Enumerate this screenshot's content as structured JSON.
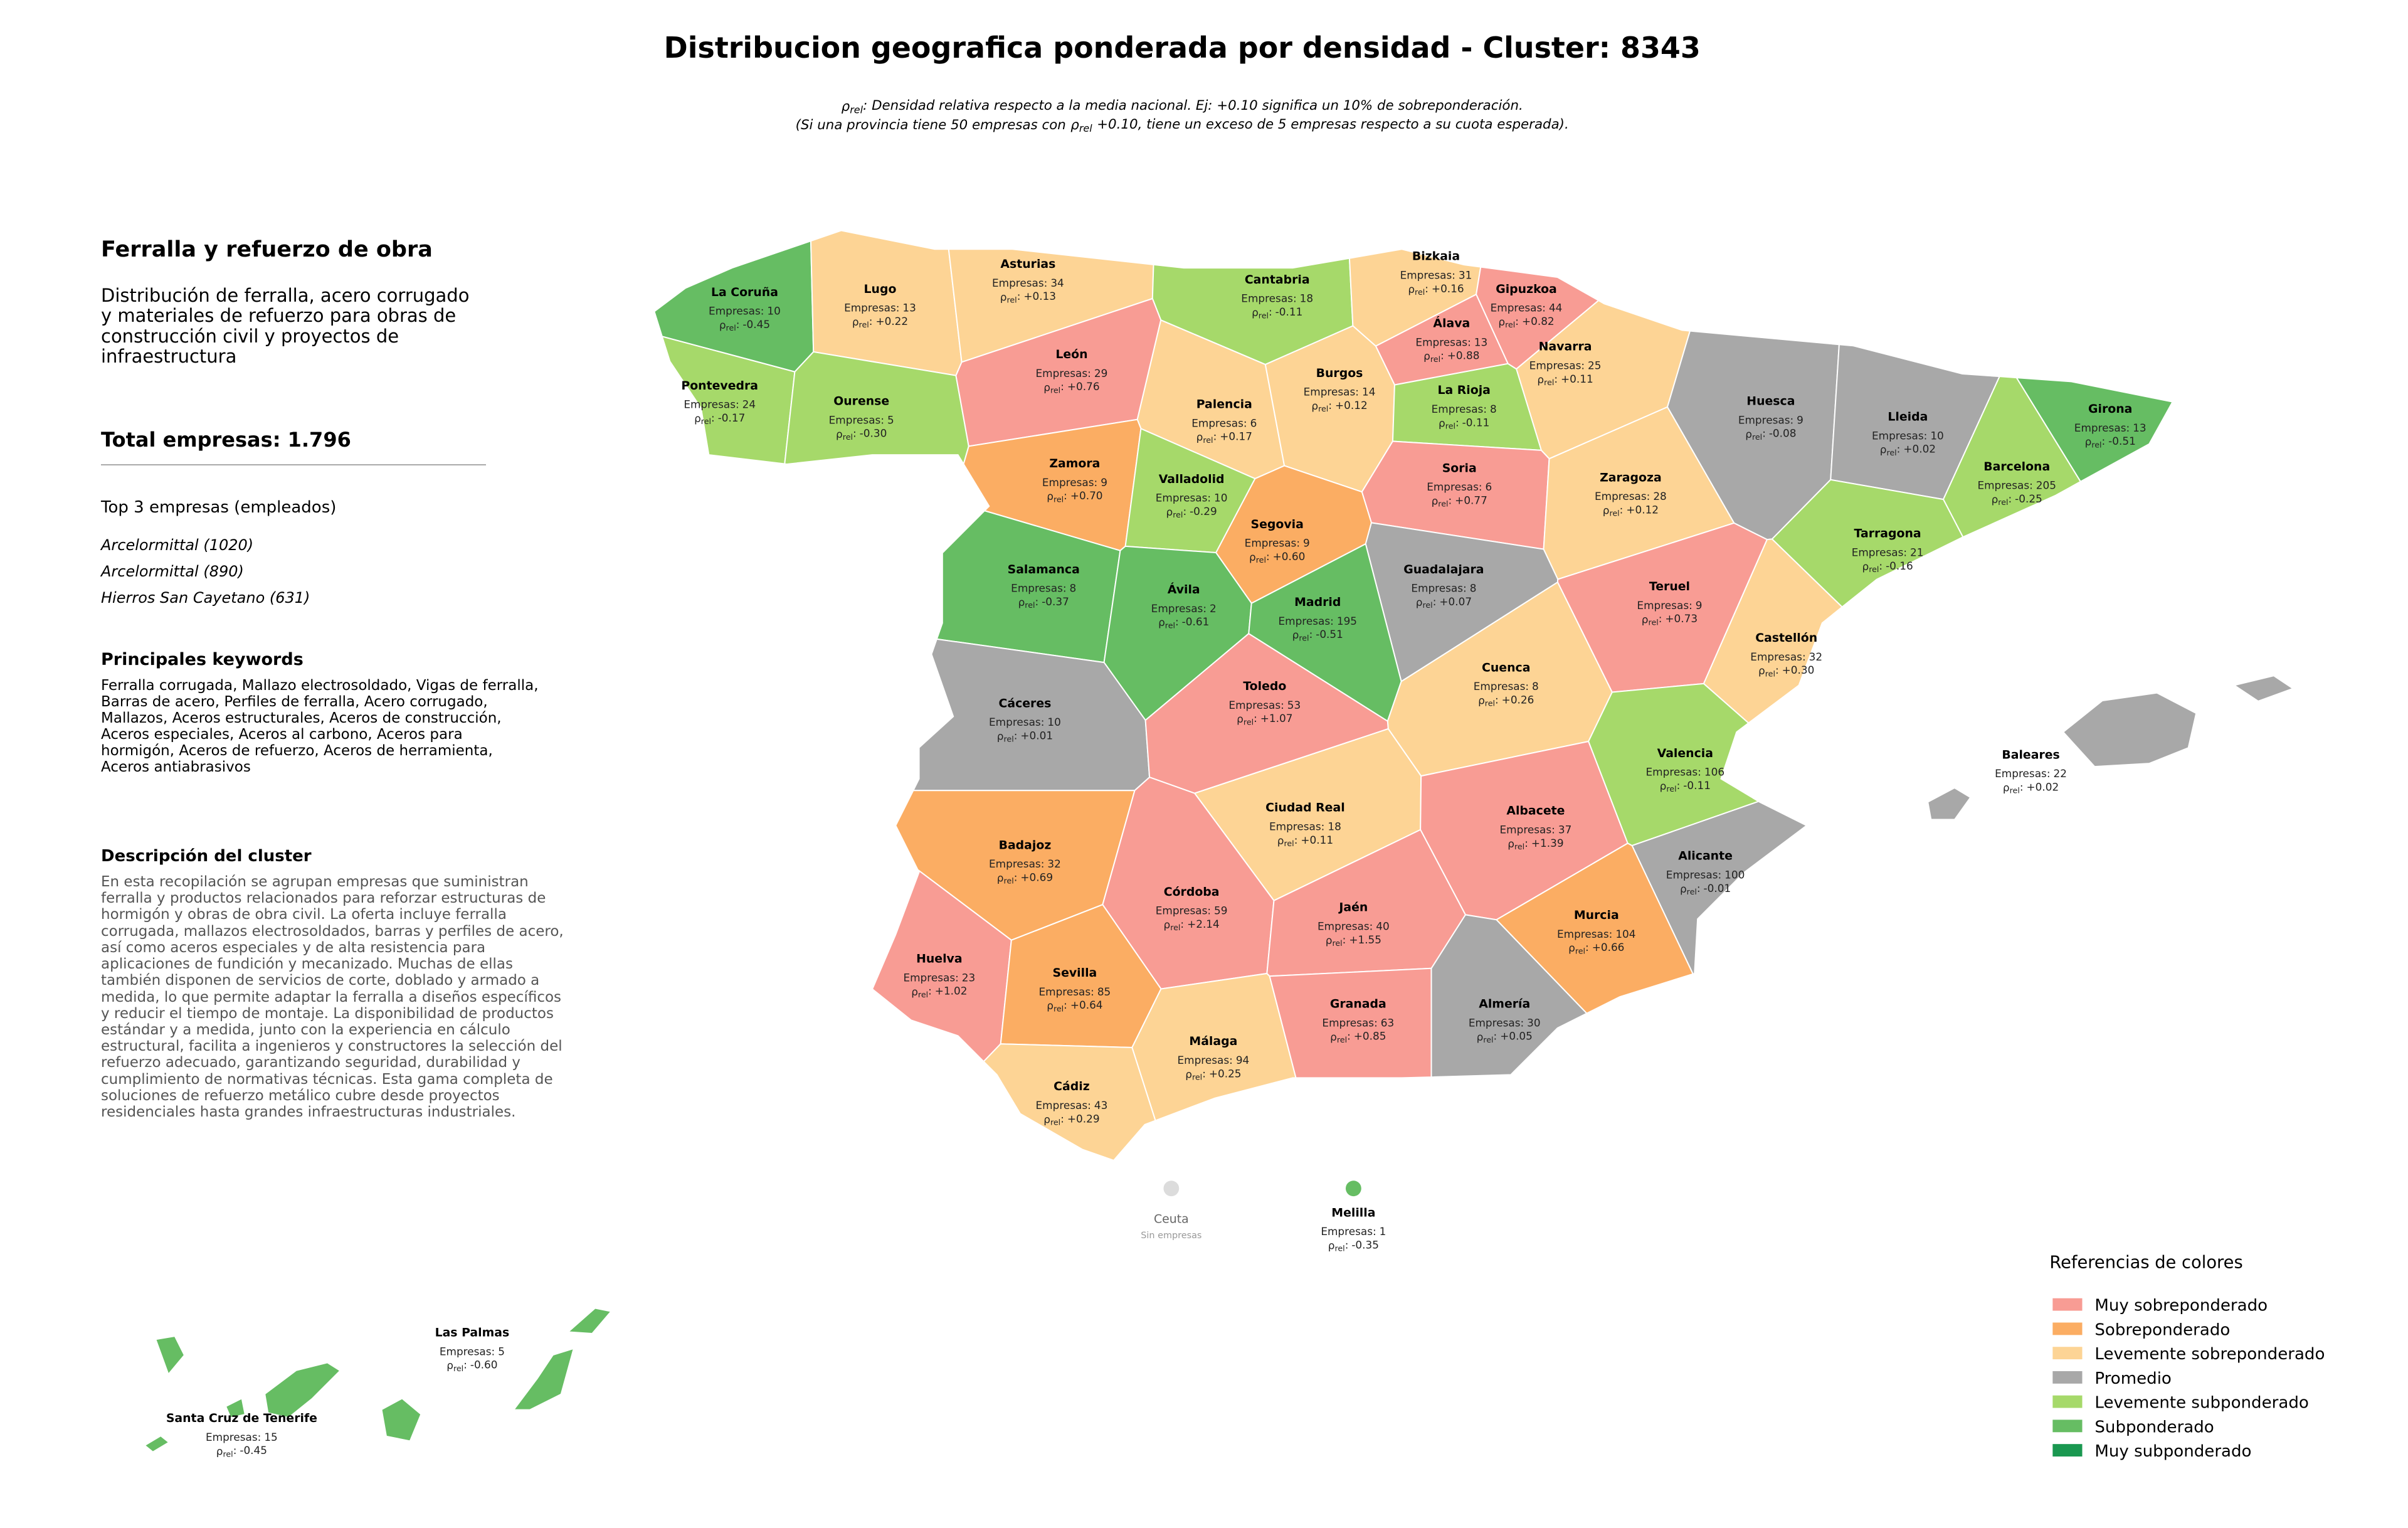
{
  "title": "Distribucion geografica ponderada por densidad - Cluster: 8343",
  "rho_symbol": "ρ",
  "rho_sub": "rel",
  "rho_sep": ":",
  "subtitle": {
    "line1": ": Densidad relativa respecto a la media nacional. Ej: +0.10 significa un 10% de sobreponderación.",
    "line2_pre": "(Si una provincia tiene 50 empresas con",
    "line2_post": "+0.10, tiene un exceso de 5 empresas respecto a su cuota esperada)."
  },
  "panel": {
    "heading": "Ferralla y refuerzo de obra",
    "description": "Distribución de ferralla, acero corrugado y materiales de refuerzo para obras de construcción civil y proyectos de infraestructura",
    "total": "Total empresas: 1.796",
    "top_heading": "Top 3 empresas (empleados)",
    "top": [
      "Arcelormittal (1020)",
      "Arcelormittal (890)",
      "Hierros San Cayetano (631)"
    ],
    "keywords_heading": "Principales keywords",
    "keywords": "Ferralla corrugada, Mallazo electrosoldado, Vigas de ferralla, Barras de acero, Perfiles de ferralla, Acero corrugado, Mallazos, Aceros estructurales, Aceros de construcción, Aceros especiales, Aceros al carbono, Aceros para hormigón, Aceros de refuerzo, Aceros de herramienta, Aceros antiabrasivos",
    "cluster_heading": "Descripción del cluster",
    "cluster_text": "En esta recopilación se agrupan empresas que suministran ferralla y productos relacionados para reforzar estructuras de hormigón y obras de obra civil. La oferta incluye ferralla corrugada, mallazos electrosoldados, barras y perfiles de acero, así como aceros especiales y de alta resistencia para aplicaciones de fundición y mecanizado. Muchas de ellas también disponen de servicios de corte, doblado y armado a medida, lo que permite adaptar la ferralla a diseños específicos y reducir el tiempo de montaje. La disponibilidad de productos estándar y a medida, junto con la experiencia en cálculo estructural, facilita a ingenieros y constructores la selección del refuerzo adecuado, garantizando seguridad, durabilidad y cumplimiento de normativas técnicas. Esta gama completa de soluciones de refuerzo metálico cubre desde proyectos residenciales hasta grandes infraestructuras industriales."
  },
  "empresas_prefix": "Empresas:",
  "provinces": [
    {
      "name": "La Coruña",
      "count": 10,
      "rho": "-0.45",
      "color": "#66bd63"
    },
    {
      "name": "Lugo",
      "count": 13,
      "rho": "+0.22",
      "color": "#fdd495"
    },
    {
      "name": "Asturias",
      "count": 34,
      "rho": "+0.13",
      "color": "#fdd495"
    },
    {
      "name": "Cantabria",
      "count": 18,
      "rho": "-0.11",
      "color": "#a6d96a"
    },
    {
      "name": "Bizkaia",
      "count": 31,
      "rho": "+0.16",
      "color": "#fdd495"
    },
    {
      "name": "Gipuzkoa",
      "count": 44,
      "rho": "+0.82",
      "color": "#f89c94"
    },
    {
      "name": "Álava",
      "count": 13,
      "rho": "+0.88",
      "color": "#f89c94"
    },
    {
      "name": "Navarra",
      "count": 25,
      "rho": "+0.11",
      "color": "#fdd495"
    },
    {
      "name": "Pontevedra",
      "count": 24,
      "rho": "-0.17",
      "color": "#a6d96a"
    },
    {
      "name": "Ourense",
      "count": 5,
      "rho": "-0.30",
      "color": "#a6d96a"
    },
    {
      "name": "León",
      "count": 29,
      "rho": "+0.76",
      "color": "#f89c94"
    },
    {
      "name": "Palencia",
      "count": 6,
      "rho": "+0.17",
      "color": "#fdd495"
    },
    {
      "name": "Burgos",
      "count": 14,
      "rho": "+0.12",
      "color": "#fdd495"
    },
    {
      "name": "La Rioja",
      "count": 8,
      "rho": "-0.11",
      "color": "#a6d96a"
    },
    {
      "name": "Huesca",
      "count": 9,
      "rho": "-0.08",
      "color": "#a8a8a8"
    },
    {
      "name": "Lleida",
      "count": 10,
      "rho": "+0.02",
      "color": "#a8a8a8"
    },
    {
      "name": "Girona",
      "count": 13,
      "rho": "-0.51",
      "color": "#66bd63"
    },
    {
      "name": "Barcelona",
      "count": 205,
      "rho": "-0.25",
      "color": "#a6d96a"
    },
    {
      "name": "Zamora",
      "count": 9,
      "rho": "+0.70",
      "color": "#fbad63"
    },
    {
      "name": "Valladolid",
      "count": 10,
      "rho": "-0.29",
      "color": "#a6d96a"
    },
    {
      "name": "Soria",
      "count": 6,
      "rho": "+0.77",
      "color": "#f89c94"
    },
    {
      "name": "Zaragoza",
      "count": 28,
      "rho": "+0.12",
      "color": "#fdd495"
    },
    {
      "name": "Tarragona",
      "count": 21,
      "rho": "-0.16",
      "color": "#a6d96a"
    },
    {
      "name": "Segovia",
      "count": 9,
      "rho": "+0.60",
      "color": "#fbad63"
    },
    {
      "name": "Salamanca",
      "count": 8,
      "rho": "-0.37",
      "color": "#66bd63"
    },
    {
      "name": "Guadalajara",
      "count": 8,
      "rho": "+0.07",
      "color": "#a8a8a8"
    },
    {
      "name": "Teruel",
      "count": 9,
      "rho": "+0.73",
      "color": "#f89c94"
    },
    {
      "name": "Ávila",
      "count": 2,
      "rho": "-0.61",
      "color": "#66bd63"
    },
    {
      "name": "Madrid",
      "count": 195,
      "rho": "-0.51",
      "color": "#66bd63"
    },
    {
      "name": "Castellón",
      "count": 32,
      "rho": "+0.30",
      "color": "#fdd495"
    },
    {
      "name": "Cuenca",
      "count": 8,
      "rho": "+0.26",
      "color": "#fdd495"
    },
    {
      "name": "Cáceres",
      "count": 10,
      "rho": "+0.01",
      "color": "#a8a8a8"
    },
    {
      "name": "Toledo",
      "count": 53,
      "rho": "+1.07",
      "color": "#f89c94"
    },
    {
      "name": "Valencia",
      "count": 106,
      "rho": "-0.11",
      "color": "#a6d96a"
    },
    {
      "name": "Ciudad Real",
      "count": 18,
      "rho": "+0.11",
      "color": "#fdd495"
    },
    {
      "name": "Badajoz",
      "count": 32,
      "rho": "+0.69",
      "color": "#fbad63"
    },
    {
      "name": "Albacete",
      "count": 37,
      "rho": "+1.39",
      "color": "#f89c94"
    },
    {
      "name": "Alicante",
      "count": 100,
      "rho": "-0.01",
      "color": "#a8a8a8"
    },
    {
      "name": "Córdoba",
      "count": 59,
      "rho": "+2.14",
      "color": "#f89c94"
    },
    {
      "name": "Jaén",
      "count": 40,
      "rho": "+1.55",
      "color": "#f89c94"
    },
    {
      "name": "Murcia",
      "count": 104,
      "rho": "+0.66",
      "color": "#fbad63"
    },
    {
      "name": "Huelva",
      "count": 23,
      "rho": "+1.02",
      "color": "#f89c94"
    },
    {
      "name": "Sevilla",
      "count": 85,
      "rho": "+0.64",
      "color": "#fbad63"
    },
    {
      "name": "Granada",
      "count": 63,
      "rho": "+0.85",
      "color": "#f89c94"
    },
    {
      "name": "Almería",
      "count": 30,
      "rho": "+0.05",
      "color": "#a8a8a8"
    },
    {
      "name": "Málaga",
      "count": 94,
      "rho": "+0.25",
      "color": "#fdd495"
    },
    {
      "name": "Cádiz",
      "count": 43,
      "rho": "+0.29",
      "color": "#fdd495"
    },
    {
      "name": "Baleares",
      "count": 22,
      "rho": "+0.02",
      "color": "#a8a8a8"
    },
    {
      "name": "Ceuta",
      "note": "Sin empresas",
      "color": "#dcdcdc"
    },
    {
      "name": "Melilla",
      "count": 1,
      "rho": "-0.35",
      "color": "#66bd63"
    },
    {
      "name": "Las Palmas",
      "count": 5,
      "rho": "-0.60",
      "color": "#66bd63"
    },
    {
      "name": "Santa Cruz de Tenerife",
      "count": 15,
      "rho": "-0.45",
      "color": "#66bd63"
    }
  ],
  "legend": {
    "title": "Referencias de colores",
    "items": [
      {
        "label": "Muy sobreponderado",
        "color": "#f89c94"
      },
      {
        "label": "Sobreponderado",
        "color": "#fbad63"
      },
      {
        "label": "Levemente sobreponderado",
        "color": "#fdd495"
      },
      {
        "label": "Promedio",
        "color": "#a8a8a8"
      },
      {
        "label": "Levemente subponderado",
        "color": "#a6d96a"
      },
      {
        "label": "Subponderado",
        "color": "#66bd63"
      },
      {
        "label": "Muy subponderado",
        "color": "#1a9850"
      }
    ]
  }
}
